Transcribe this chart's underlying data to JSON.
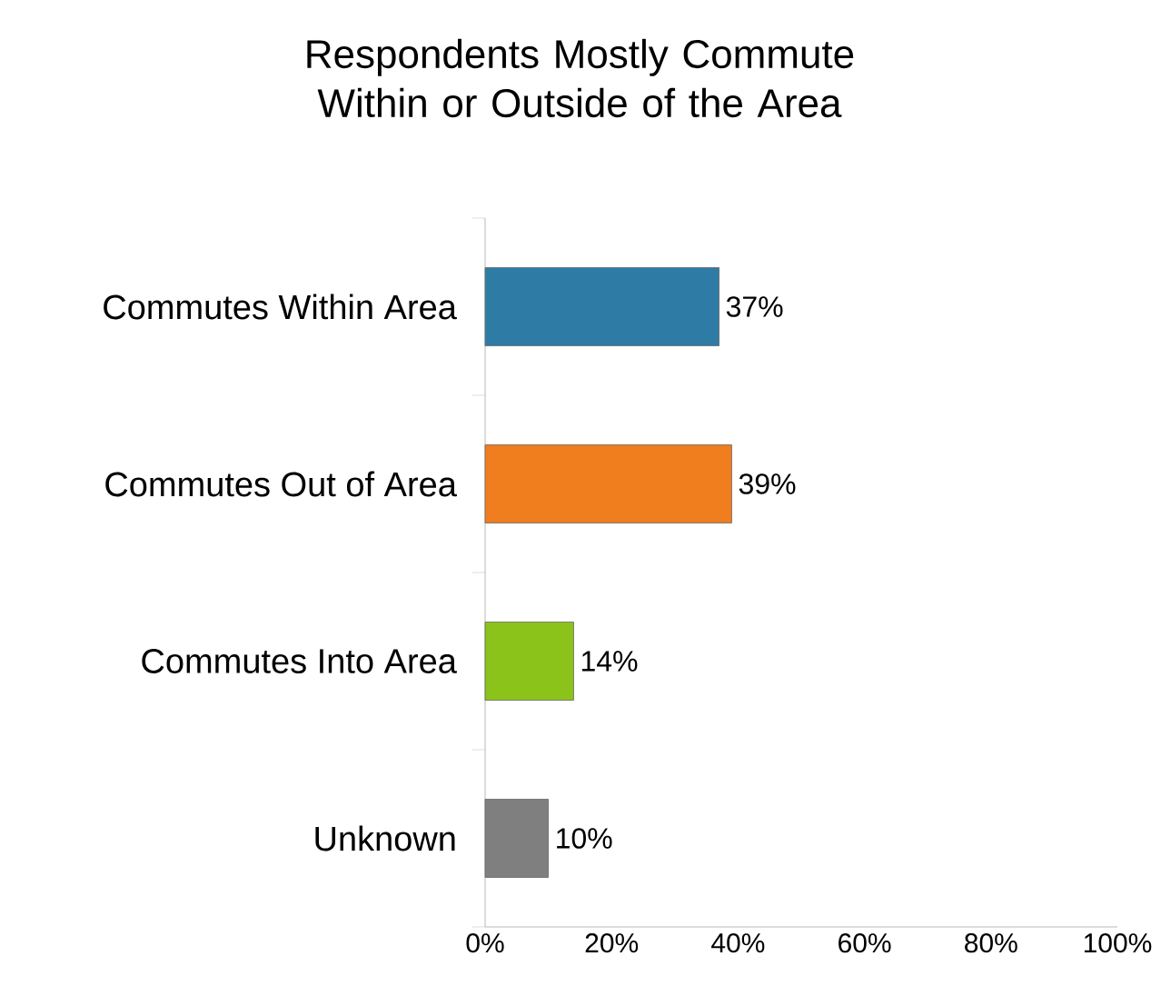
{
  "chart_data": {
    "type": "bar",
    "orientation": "horizontal",
    "title": "Respondents Mostly Commute Within or Outside of the Area",
    "categories": [
      "Commutes Within Area",
      "Commutes Out of Area",
      "Commutes Into Area",
      "Unknown"
    ],
    "values": [
      37,
      39,
      14,
      10
    ],
    "value_labels": [
      "37%",
      "39%",
      "14%",
      "10%"
    ],
    "colors": [
      "#2e7ca6",
      "#f07d1e",
      "#8cc31a",
      "#7f7f7f"
    ],
    "xlim": [
      0,
      100
    ],
    "xticks": [
      {
        "value": 0,
        "label": "0%"
      },
      {
        "value": 20,
        "label": "20%"
      },
      {
        "value": 40,
        "label": "40%"
      },
      {
        "value": 60,
        "label": "60%"
      },
      {
        "value": 80,
        "label": "80%"
      },
      {
        "value": 100,
        "label": "100%"
      }
    ],
    "grid": false
  }
}
